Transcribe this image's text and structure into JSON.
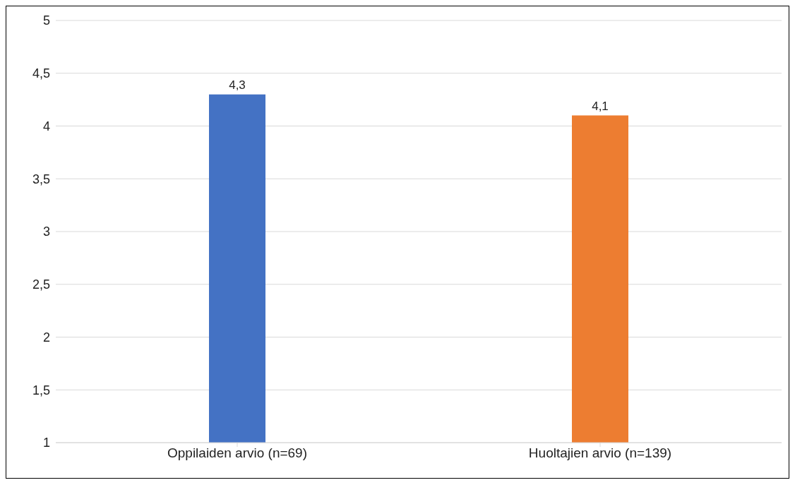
{
  "chart_data": {
    "type": "bar",
    "categories": [
      "Oppilaiden arvio (n=69)",
      "Huoltajien arvio (n=139)"
    ],
    "values": [
      4.3,
      4.1
    ],
    "colors": [
      "#4472c4",
      "#ed7d31"
    ],
    "value_labels": [
      "4,3",
      "4,1"
    ],
    "ylim": [
      1,
      5
    ],
    "yticks": [
      1,
      {
        "value": 1.5,
        "label": "1,5"
      },
      2,
      {
        "value": 2.5,
        "label": "2,5"
      },
      3,
      {
        "value": 3.5,
        "label": "3,5"
      },
      4,
      {
        "value": 4.5,
        "label": "4,5"
      },
      5
    ],
    "grid": "y"
  }
}
